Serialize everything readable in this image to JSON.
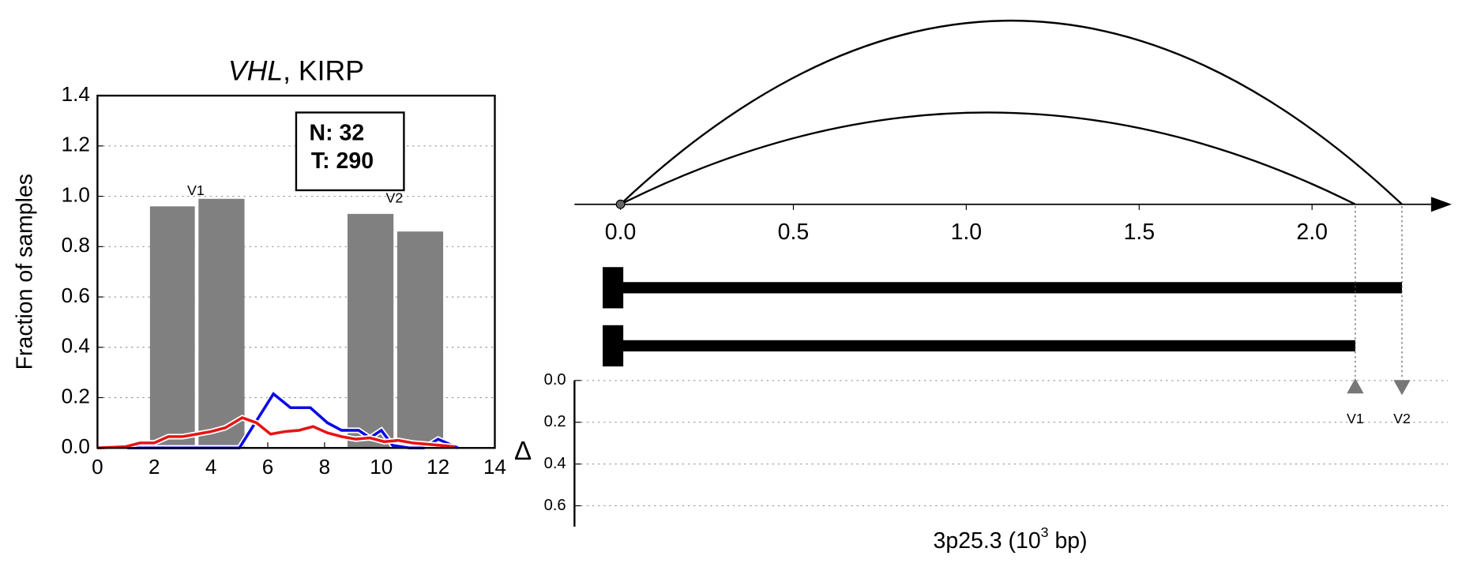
{
  "chart_data": [
    {
      "type": "bar",
      "title_parts": [
        "VHL",
        ", KIRP"
      ],
      "ylabel": "Fraction of samples",
      "xlim": [
        0,
        14
      ],
      "xticks": [
        0,
        2,
        4,
        6,
        8,
        10,
        12,
        14
      ],
      "ylim": [
        0,
        1.4
      ],
      "yticks": [
        {
          "value": 0,
          "label": "0.0"
        },
        0.2,
        0.4,
        0.6,
        0.8,
        {
          "value": 1,
          "label": "1.0"
        },
        1.2,
        1.4
      ],
      "grid": true,
      "bars": {
        "color": "#808080",
        "left": [
          1.85,
          3.56,
          8.81,
          10.56
        ],
        "right": [
          3.43,
          5.18,
          10.43,
          12.18
        ],
        "values": [
          0.96,
          0.99,
          0.93,
          0.86
        ],
        "labels": [
          "V1",
          null,
          "V2",
          null
        ]
      },
      "lines": [
        {
          "color": "#0a0ae6",
          "x": [
            0,
            5.0,
            6.2,
            6.8,
            7.5,
            8.1,
            8.6,
            9.2,
            9.6,
            10.0,
            10.4,
            11.0,
            11.5,
            12.0,
            12.5,
            12.7
          ],
          "values": [
            0,
            0,
            0.215,
            0.16,
            0.16,
            0.1,
            0.07,
            0.07,
            0.04,
            0.07,
            0.01,
            0,
            0,
            0.035,
            0.01,
            0
          ]
        },
        {
          "color": "#e61414",
          "x": [
            0,
            1,
            1.5,
            2,
            2.5,
            3,
            3.5,
            4,
            4.5,
            5.1,
            5.6,
            6.1,
            6.6,
            7.1,
            7.6,
            8.1,
            8.6,
            9.1,
            9.6,
            10.1,
            10.6,
            11.1,
            11.6,
            12.1,
            12.6
          ],
          "values": [
            0,
            0.005,
            0.02,
            0.02,
            0.045,
            0.045,
            0.055,
            0.065,
            0.08,
            0.12,
            0.1,
            0.055,
            0.065,
            0.07,
            0.085,
            0.06,
            0.045,
            0.035,
            0.04,
            0.025,
            0.03,
            0.02,
            0.015,
            0.01,
            0.005
          ]
        }
      ],
      "annotation": [
        "N: 32",
        "T: 290"
      ]
    },
    {
      "type": "arc",
      "xlim": [
        -0.133,
        2.393
      ],
      "xticks": [
        {
          "value": 0,
          "label": "0.0"
        },
        0.5,
        {
          "value": 1,
          "label": "1.0"
        },
        1.5,
        {
          "value": 2,
          "label": "2.0"
        }
      ],
      "arcs": [
        {
          "start": 0,
          "end": 2.26
        },
        {
          "start": 0,
          "end": 2.125
        }
      ],
      "transcripts": [
        {
          "start": 0,
          "end": 2.26
        },
        {
          "start": 0,
          "end": 2.125
        }
      ]
    },
    {
      "type": "scatter",
      "ylabel": "Δ",
      "xlabel_parts": [
        "3p25.3 (10",
        "3",
        " bp)"
      ],
      "xlim": [
        -0.133,
        2.393
      ],
      "ylim": [
        0,
        0.7
      ],
      "yticks": [
        {
          "value": 0,
          "label": "0.0"
        },
        0.2,
        0.4,
        0.6
      ],
      "grid": true,
      "color": "#777777",
      "x": [
        2.125,
        2.26
      ],
      "values": [
        0.03,
        0.03
      ],
      "labels": [
        "V1",
        "V2"
      ],
      "markers": [
        "triangle-up",
        "triangle-down"
      ]
    }
  ]
}
